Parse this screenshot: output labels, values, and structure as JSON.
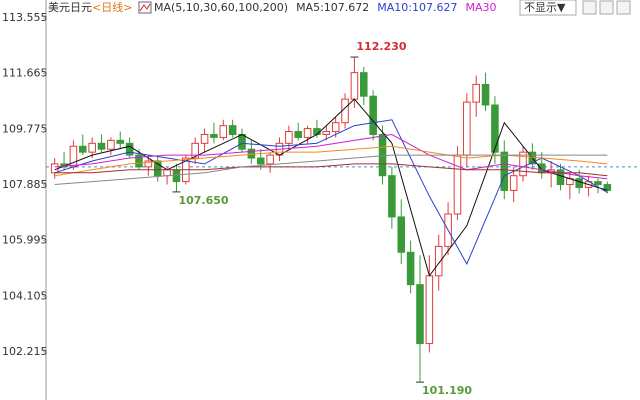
{
  "chart_data": {
    "type": "candlestick",
    "title": "美元日元",
    "period": "<日线>",
    "legend": [
      "MA(5,10,30,60,100,200)",
      "MA5:107.672",
      "MA10:107.627",
      "MA30"
    ],
    "legend_colors": [
      "#333333",
      "#333333",
      "#2a3fd0",
      "#d020d0"
    ],
    "dropdown": "不显示▼",
    "ylim": [
      100.583,
      114.167
    ],
    "yticks": [
      113.555,
      111.665,
      109.775,
      107.885,
      105.995,
      104.105,
      102.215
    ],
    "up_color": "#e03c3c",
    "down_color": "#3a9a3a",
    "ref_line": 108.5,
    "open": [
      108.3,
      108.6,
      108.5,
      109.2,
      109.0,
      109.3,
      109.1,
      109.4,
      109.3,
      108.9,
      108.5,
      108.7,
      108.2,
      108.4,
      108.0,
      108.8,
      109.3,
      109.6,
      109.5,
      109.9,
      109.6,
      109.1,
      108.8,
      108.6,
      108.9,
      109.3,
      109.7,
      109.5,
      109.8,
      109.6,
      109.7,
      110.0,
      110.8,
      111.7,
      110.9,
      109.6,
      108.2,
      106.8,
      105.6,
      104.5,
      102.5,
      104.8,
      105.8,
      106.9,
      108.9,
      110.7,
      111.3,
      110.6,
      109.0,
      107.7,
      108.2,
      109.0,
      108.6,
      108.3,
      108.4,
      107.9,
      108.1,
      107.8,
      108.0,
      107.9
    ],
    "high": [
      108.8,
      109.0,
      109.4,
      109.6,
      109.5,
      109.6,
      109.5,
      109.7,
      109.5,
      109.1,
      108.9,
      108.9,
      108.5,
      108.6,
      108.9,
      109.5,
      109.8,
      110.0,
      110.1,
      110.1,
      109.8,
      109.4,
      109.1,
      109.0,
      109.5,
      109.9,
      110.0,
      109.9,
      110.1,
      109.9,
      110.2,
      111.0,
      112.23,
      111.9,
      111.1,
      109.9,
      108.5,
      107.4,
      106.0,
      105.5,
      105.5,
      106.2,
      107.3,
      109.2,
      111.0,
      111.6,
      111.7,
      110.9,
      109.4,
      108.5,
      109.2,
      109.3,
      109.0,
      108.7,
      108.6,
      108.3,
      108.4,
      108.2,
      108.1,
      108.0
    ],
    "low": [
      108.1,
      108.4,
      108.4,
      108.9,
      108.8,
      109.0,
      108.9,
      109.1,
      108.8,
      108.4,
      108.2,
      108.0,
      107.9,
      107.65,
      107.9,
      108.6,
      109.0,
      109.3,
      109.4,
      109.5,
      109.0,
      108.6,
      108.4,
      108.3,
      108.7,
      109.1,
      109.4,
      109.3,
      109.5,
      109.4,
      109.5,
      109.8,
      110.5,
      110.6,
      109.4,
      107.9,
      106.4,
      105.2,
      104.2,
      101.19,
      102.2,
      104.3,
      105.5,
      106.7,
      108.5,
      110.2,
      110.4,
      108.6,
      107.4,
      107.3,
      108.0,
      108.4,
      108.1,
      107.8,
      107.7,
      107.4,
      107.6,
      107.5,
      107.6,
      107.6
    ],
    "close": [
      108.6,
      108.5,
      109.2,
      109.0,
      109.3,
      109.1,
      109.4,
      109.3,
      108.9,
      108.5,
      108.7,
      108.2,
      108.4,
      108.0,
      108.8,
      109.3,
      109.6,
      109.5,
      109.9,
      109.6,
      109.1,
      108.8,
      108.6,
      108.9,
      109.3,
      109.7,
      109.5,
      109.8,
      109.6,
      109.7,
      110.0,
      110.8,
      111.7,
      110.9,
      109.6,
      108.2,
      106.8,
      105.6,
      104.5,
      102.5,
      104.8,
      105.8,
      106.9,
      108.9,
      110.7,
      111.3,
      110.6,
      109.0,
      107.7,
      108.2,
      109.0,
      108.6,
      108.3,
      108.4,
      107.9,
      108.1,
      107.8,
      108.0,
      107.9,
      107.7
    ],
    "annotations": [
      {
        "index": 32,
        "value": 112.23,
        "label": "112.230",
        "color": "#d03030",
        "side": "above"
      },
      {
        "index": 13,
        "value": 107.65,
        "label": "107.650",
        "color": "#5a9a3a",
        "side": "below"
      },
      {
        "index": 39,
        "value": 101.19,
        "label": "101.190",
        "color": "#5a9a3a",
        "side": "below"
      }
    ],
    "series": [
      {
        "name": "MA5",
        "color": "#111111",
        "x": [
          0,
          4,
          8,
          12,
          16,
          20,
          24,
          28,
          32,
          36,
          40,
          44,
          48,
          52,
          56,
          59
        ],
        "values": [
          108.4,
          108.9,
          109.2,
          108.4,
          109.0,
          109.6,
          108.9,
          109.6,
          110.8,
          109.3,
          104.8,
          106.5,
          110.0,
          108.4,
          108.0,
          107.7
        ]
      },
      {
        "name": "MA10",
        "color": "#2a3fd0",
        "x": [
          0,
          4,
          8,
          12,
          16,
          20,
          24,
          28,
          32,
          36,
          40,
          44,
          48,
          52,
          56,
          59
        ],
        "values": [
          108.3,
          108.7,
          109.0,
          108.8,
          108.6,
          109.3,
          109.2,
          109.3,
          109.9,
          110.1,
          107.5,
          105.2,
          108.2,
          108.8,
          108.2,
          107.63
        ]
      },
      {
        "name": "MA30",
        "color": "#d020d0",
        "x": [
          0,
          4,
          8,
          12,
          16,
          20,
          24,
          28,
          32,
          36,
          40,
          44,
          48,
          52,
          56,
          59
        ],
        "values": [
          108.5,
          108.6,
          108.8,
          108.9,
          108.9,
          109.0,
          109.1,
          109.2,
          109.4,
          109.6,
          108.9,
          108.4,
          108.6,
          108.4,
          108.2,
          108.1
        ]
      },
      {
        "color": "#f08c1e",
        "x": [
          0,
          4,
          8,
          12,
          16,
          20,
          24,
          28,
          32,
          36,
          40,
          44,
          48,
          52,
          56,
          59
        ],
        "values": [
          108.2,
          108.4,
          108.6,
          108.7,
          108.8,
          108.9,
          109.0,
          109.0,
          109.1,
          109.2,
          109.0,
          108.8,
          108.9,
          108.8,
          108.7,
          108.6
        ]
      },
      {
        "color": "#a03030",
        "x": [
          0,
          4,
          8,
          12,
          16,
          20,
          24,
          28,
          32,
          36,
          40,
          44,
          48,
          52,
          56,
          59
        ],
        "values": [
          108.3,
          108.3,
          108.4,
          108.4,
          108.4,
          108.5,
          108.5,
          108.5,
          108.6,
          108.6,
          108.5,
          108.4,
          108.4,
          108.3,
          108.3,
          108.2
        ]
      },
      {
        "color": "#888888",
        "x": [
          0,
          4,
          8,
          12,
          16,
          20,
          24,
          28,
          32,
          36,
          40,
          44,
          48,
          52,
          56,
          59
        ],
        "values": [
          107.9,
          108.0,
          108.1,
          108.2,
          108.3,
          108.5,
          108.6,
          108.7,
          108.8,
          108.9,
          108.9,
          108.9,
          108.9,
          108.9,
          108.9,
          108.9
        ]
      }
    ]
  }
}
